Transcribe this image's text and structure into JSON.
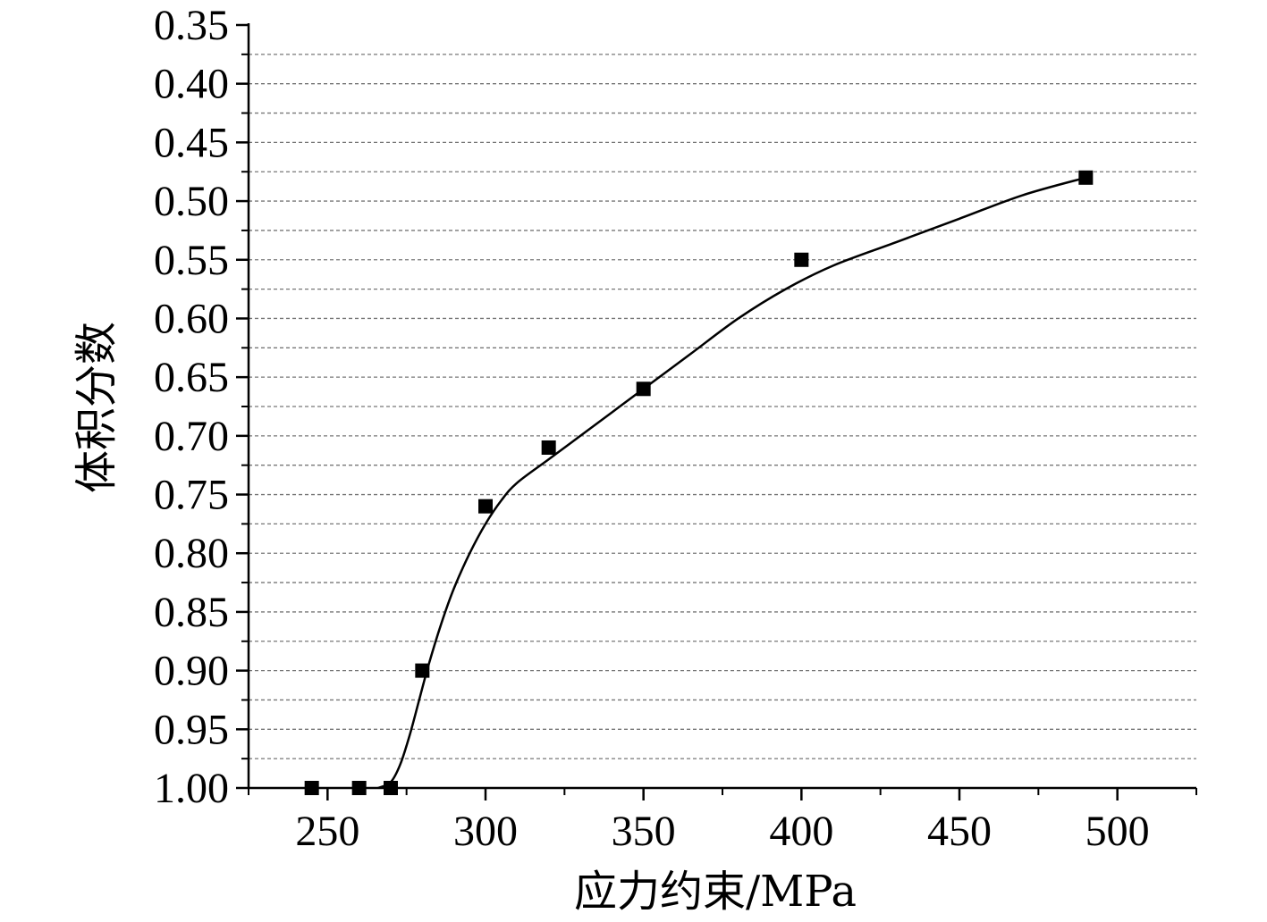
{
  "chart_data": {
    "type": "scatter",
    "xlabel": "应力约束/MPa",
    "ylabel": "体积分数",
    "xlim": [
      225,
      525
    ],
    "ylim": [
      1.0,
      0.35
    ],
    "y_axis_reversed": true,
    "x_ticks": [
      250,
      300,
      350,
      400,
      450,
      500
    ],
    "x_tick_labels": [
      "250",
      "300",
      "350",
      "400",
      "450",
      "500"
    ],
    "y_ticks": [
      0.35,
      0.4,
      0.45,
      0.5,
      0.55,
      0.6,
      0.65,
      0.7,
      0.75,
      0.8,
      0.85,
      0.9,
      0.95,
      1.0
    ],
    "y_tick_labels": [
      "0.35",
      "0.40",
      "0.45",
      "0.50",
      "0.55",
      "0.60",
      "0.65",
      "0.70",
      "0.75",
      "0.80",
      "0.85",
      "0.90",
      "0.95",
      "1.00"
    ],
    "grid": "horizontal dashed",
    "series": [
      {
        "marker": "square",
        "color": "#000000",
        "x": [
          245,
          260,
          270,
          280,
          300,
          320,
          350,
          400,
          490
        ],
        "y": [
          1.0,
          1.0,
          1.0,
          0.9,
          0.76,
          0.71,
          0.66,
          0.55,
          0.48
        ]
      }
    ],
    "fit_curve": {
      "style": "solid",
      "color": "#000000",
      "x": [
        266,
        270,
        273,
        276,
        279,
        282,
        286,
        290,
        295,
        300,
        305,
        310,
        320,
        330,
        340,
        350,
        365,
        380,
        395,
        410,
        430,
        450,
        470,
        490
      ],
      "y": [
        1.0,
        0.995,
        0.98,
        0.955,
        0.925,
        0.895,
        0.86,
        0.83,
        0.8,
        0.775,
        0.755,
        0.74,
        0.72,
        0.7,
        0.68,
        0.66,
        0.63,
        0.6,
        0.575,
        0.555,
        0.535,
        0.515,
        0.495,
        0.48
      ]
    }
  }
}
